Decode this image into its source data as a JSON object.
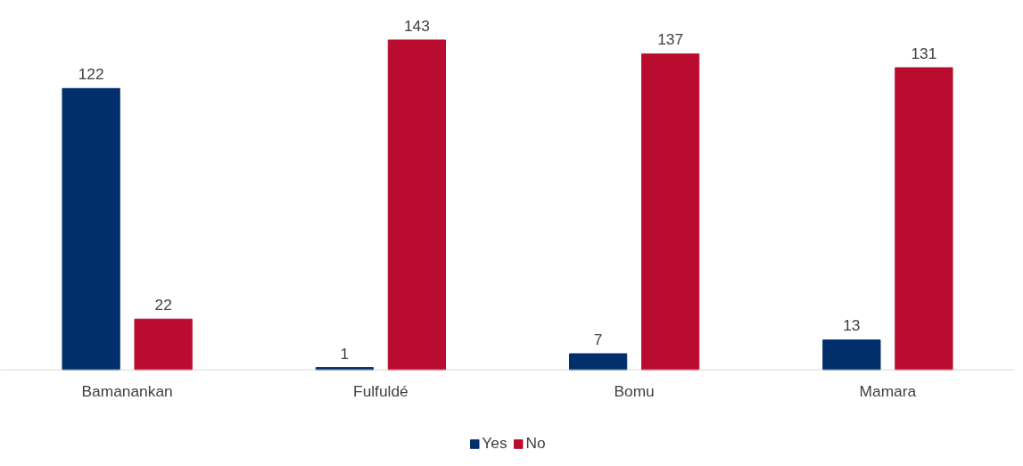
{
  "chart_data": {
    "type": "bar",
    "categories": [
      "Bamanankan",
      "Fulfuldé",
      "Bomu",
      "Mamara"
    ],
    "series": [
      {
        "name": "Yes",
        "color": "#002f6c",
        "values": [
          122,
          1,
          7,
          13
        ]
      },
      {
        "name": "No",
        "color": "#ba0c2f",
        "values": [
          22,
          143,
          137,
          131
        ]
      }
    ],
    "data_labels": true,
    "grid": false,
    "legend": "bottom"
  }
}
